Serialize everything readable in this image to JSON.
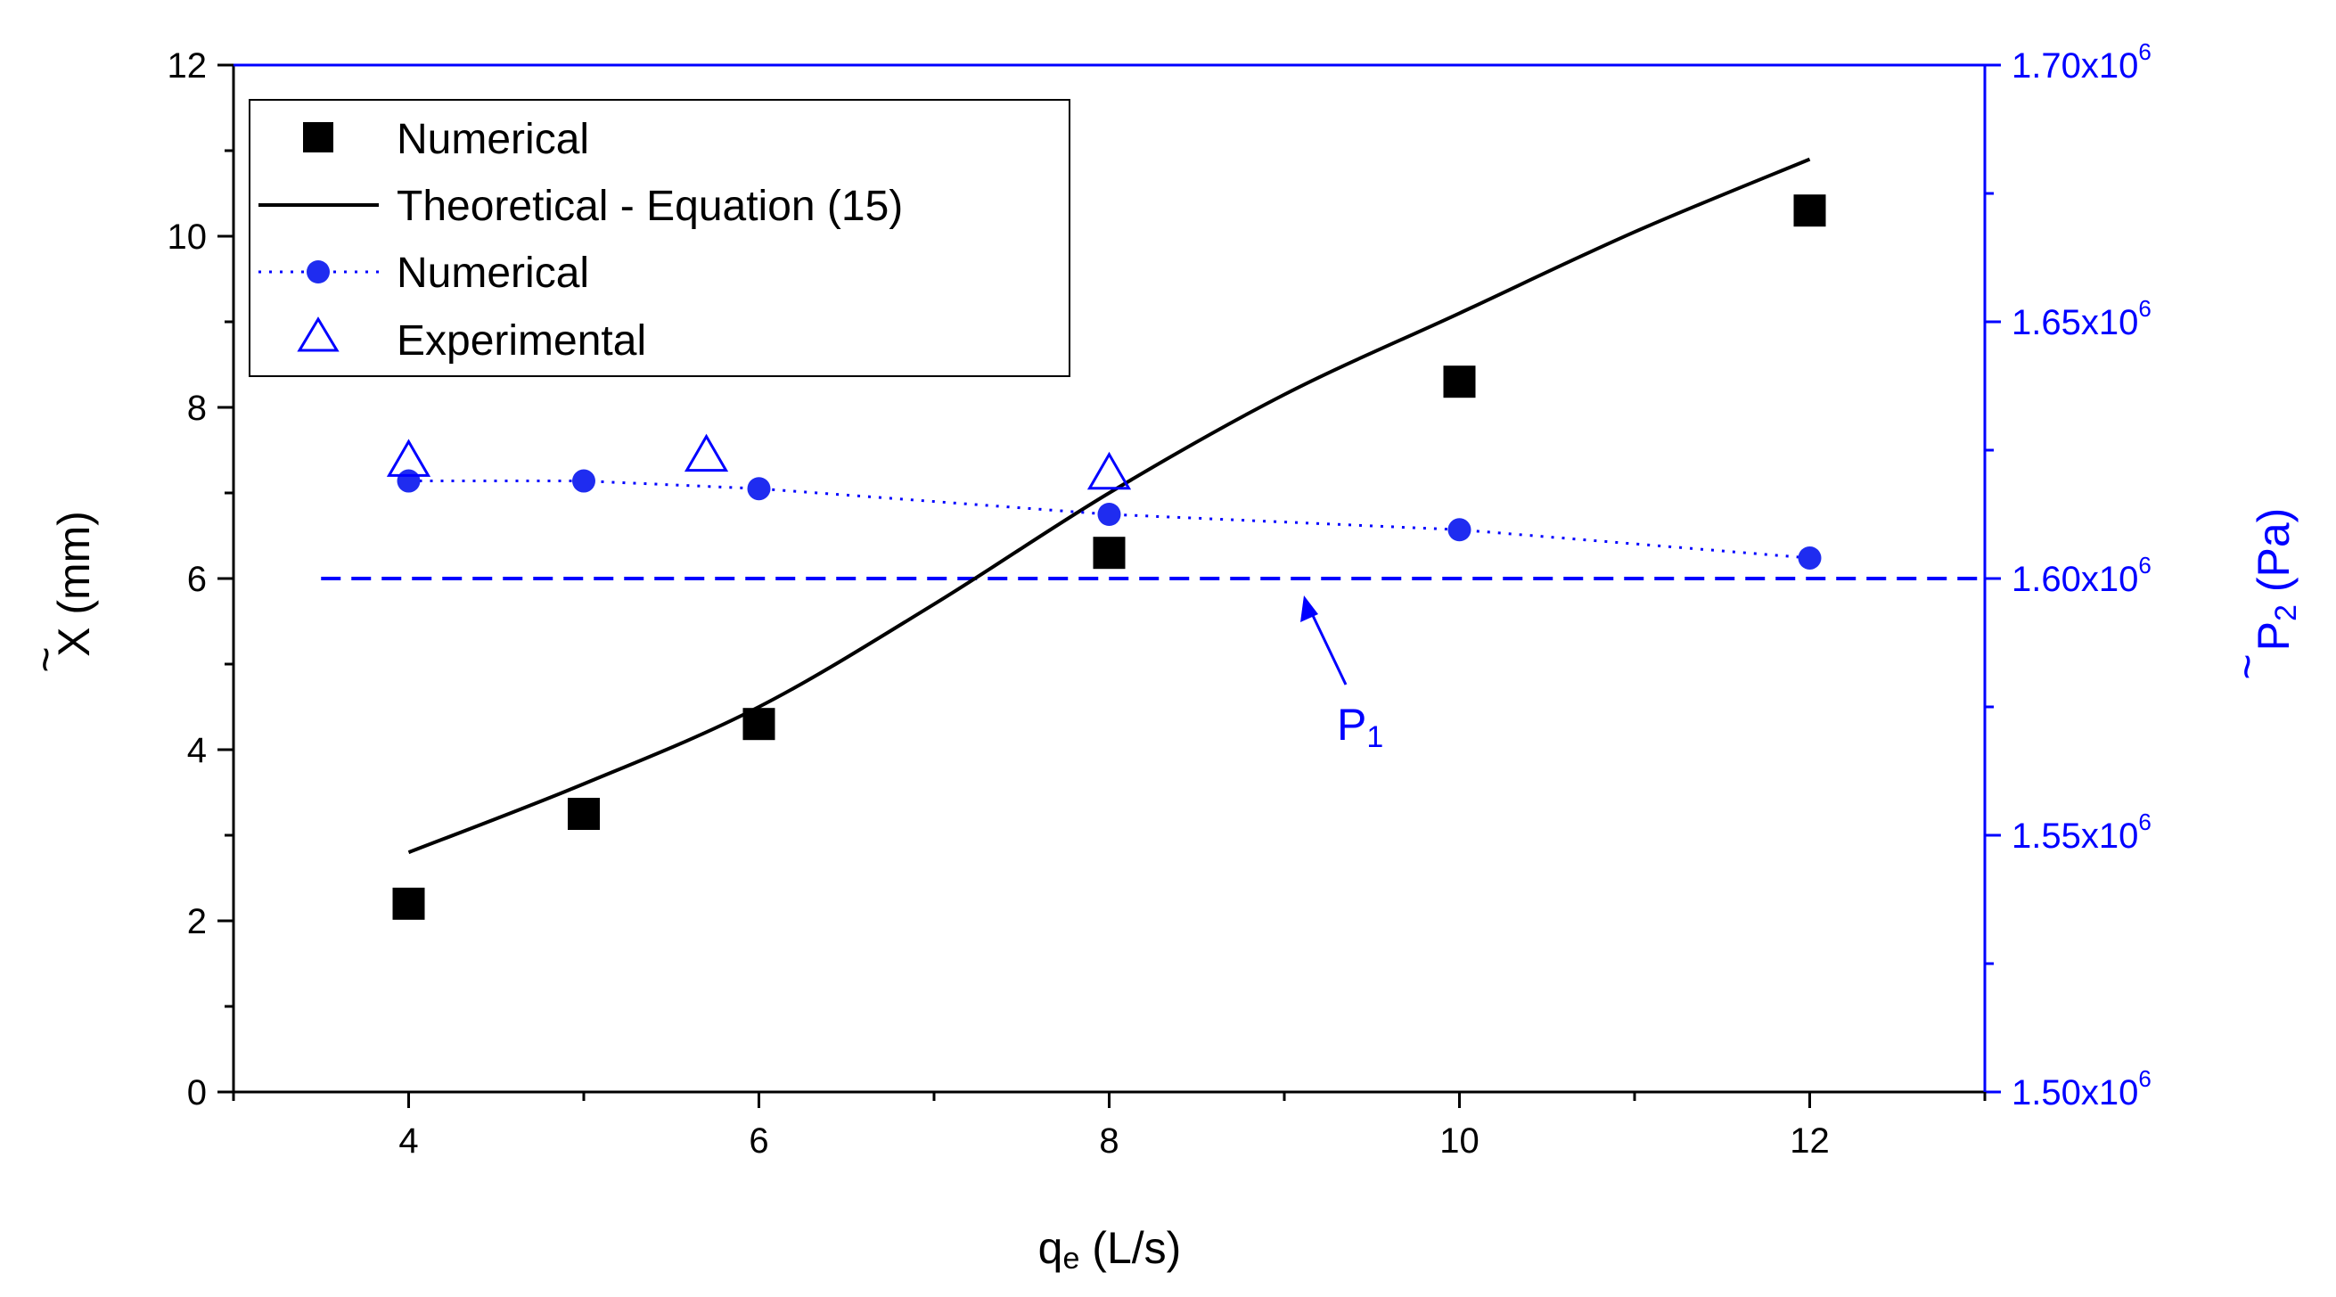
{
  "colors": {
    "black": "#000000",
    "blue": "#0000ff",
    "point_blue": "#1f2cf0"
  },
  "chart_data": {
    "type": "line",
    "x_axis": {
      "label_main": "q",
      "label_sub": "e",
      "label_unit": " (L/s)",
      "range": [
        3,
        13
      ],
      "ticks": [
        4,
        6,
        8,
        10,
        12
      ],
      "tick_labels": [
        "4",
        "6",
        "8",
        "10",
        "12"
      ],
      "minor_ticks": [
        3,
        5,
        7,
        9,
        11,
        13
      ]
    },
    "y_left": {
      "label_symbol": "X",
      "label_tilde": "~",
      "label_unit": " (mm)",
      "range": [
        0,
        12
      ],
      "ticks": [
        0,
        2,
        4,
        6,
        8,
        10,
        12
      ],
      "tick_labels": [
        "0",
        "2",
        "4",
        "6",
        "8",
        "10",
        "12"
      ],
      "minor_ticks": [
        1,
        3,
        5,
        7,
        9,
        11
      ]
    },
    "y_right": {
      "label_symbol": "P",
      "label_sub": "2",
      "label_tilde": "~",
      "label_unit": " (Pa)",
      "range": [
        1500000,
        1700000
      ],
      "ticks": [
        1500000,
        1550000,
        1600000,
        1650000,
        1700000
      ],
      "tick_mantissas": [
        "1.50x10",
        "1.55x10",
        "1.60x10",
        "1.65x10",
        "1.70x10"
      ],
      "tick_exponent": "6",
      "minor_ticks": [
        1525000,
        1575000,
        1625000,
        1675000
      ]
    },
    "series": [
      {
        "name": "Numerical",
        "axis": "left",
        "style": "square-markers",
        "x": [
          4,
          5,
          6,
          8,
          10,
          12
        ],
        "y": [
          2.2,
          3.25,
          4.3,
          6.3,
          8.3,
          10.3
        ]
      },
      {
        "name": "Theoretical - Equation (15)",
        "axis": "left",
        "style": "solid-line",
        "x": [
          4,
          5,
          6,
          7,
          8,
          9,
          10,
          11,
          12
        ],
        "y": [
          2.8,
          3.6,
          4.5,
          5.7,
          7.0,
          8.15,
          9.1,
          10.05,
          10.9
        ]
      },
      {
        "name": "Numerical",
        "axis": "right",
        "style": "dotted-line-circles",
        "x": [
          4,
          5,
          6,
          8,
          10,
          12
        ],
        "y": [
          1619000,
          1619000,
          1617500,
          1612500,
          1609500,
          1604000
        ]
      },
      {
        "name": "Experimental",
        "axis": "right",
        "style": "open-triangles",
        "x": [
          4,
          5.7,
          8
        ],
        "y": [
          1622500,
          1623500,
          1620000
        ]
      },
      {
        "name": "P1",
        "axis": "right",
        "style": "dashed-line",
        "x": [
          3.5,
          13
        ],
        "y": [
          1600000,
          1600000
        ]
      }
    ],
    "legend": {
      "position": "top-left",
      "entries": [
        "Numerical",
        "Theoretical - Equation (15)",
        "Numerical",
        "Experimental"
      ]
    },
    "annotations": [
      {
        "text_main": "P",
        "text_sub": "1",
        "points_to": {
          "x": 9.1,
          "y": 1600000,
          "axis": "right"
        }
      }
    ]
  }
}
